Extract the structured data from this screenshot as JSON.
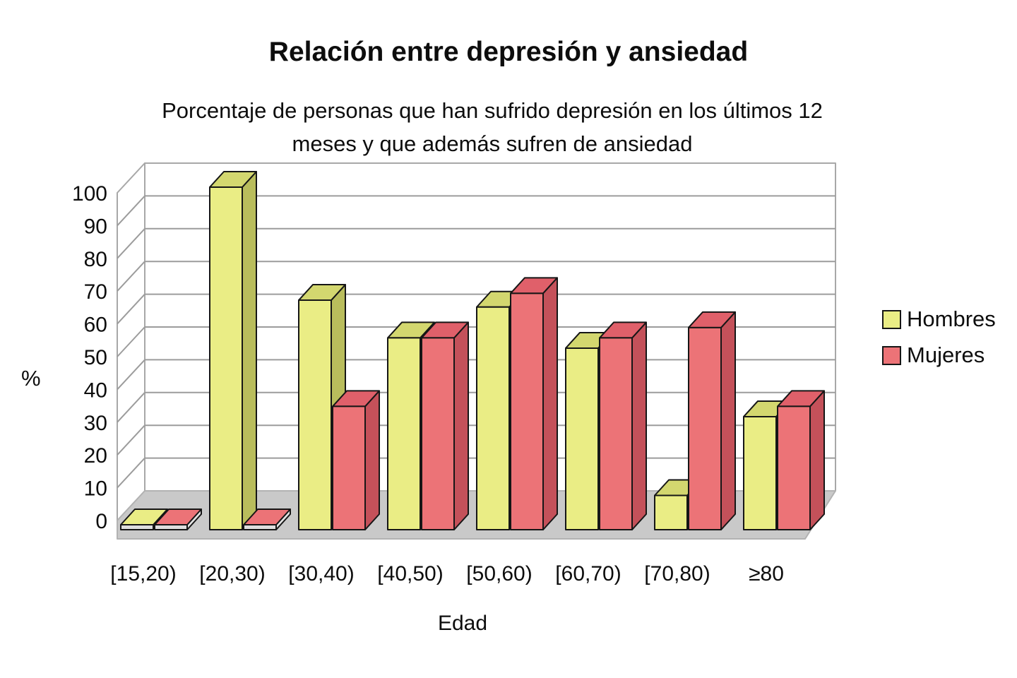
{
  "title": "Relación entre depresión y ansiedad",
  "subtitle_line1": "Porcentaje de personas que han sufrido depresión en los últimos 12",
  "subtitle_line2": "meses y que además sufren de ansiedad",
  "chart_data": {
    "type": "bar",
    "projection": "3d-column",
    "title": "Relación entre depresión y ansiedad",
    "subtitle": "Porcentaje de personas que han sufrido depresión en los últimos 12 meses y que además sufren de ansiedad",
    "xlabel": "Edad",
    "ylabel": "%",
    "ylim": [
      0,
      100
    ],
    "ytick_step": 10,
    "grid": true,
    "legend_position": "right",
    "categories": [
      "[15,20)",
      "[20,30)",
      "[30,40)",
      "[40,50)",
      "[50,60)",
      "[60,70)",
      "[70,80)",
      "≥80"
    ],
    "series": [
      {
        "name": "Hombres",
        "color": "#eaed85",
        "values": [
          1,
          100,
          67,
          56,
          65,
          53,
          10,
          33
        ]
      },
      {
        "name": "Mujeres",
        "color": "#ec7377",
        "values": [
          1,
          1,
          36,
          56,
          69,
          56,
          59,
          36
        ]
      }
    ]
  },
  "legend": {
    "items": [
      {
        "label": "Hombres",
        "color": "#eaed85"
      },
      {
        "label": "Mujeres",
        "color": "#ec7377"
      }
    ]
  },
  "axis": {
    "y_ticks": [
      0,
      10,
      20,
      30,
      40,
      50,
      60,
      70,
      80,
      90,
      100
    ]
  },
  "style": {
    "hombres_front": "#eaed85",
    "hombres_top": "#d3d76f",
    "hombres_side": "#b9bd5c",
    "mujeres_front": "#ec7377",
    "mujeres_top": "#e0606a",
    "mujeres_side": "#c4515a",
    "tile_front": "#dedede",
    "tile_side": "#e2e2e2",
    "outline": "#161616",
    "wall_line": "#9c9c9c",
    "wall_edge": "#a8a8a8",
    "floor": "#c9c9c9",
    "floor_edge": "#b2b2b2",
    "text": "#0d0d0d"
  }
}
